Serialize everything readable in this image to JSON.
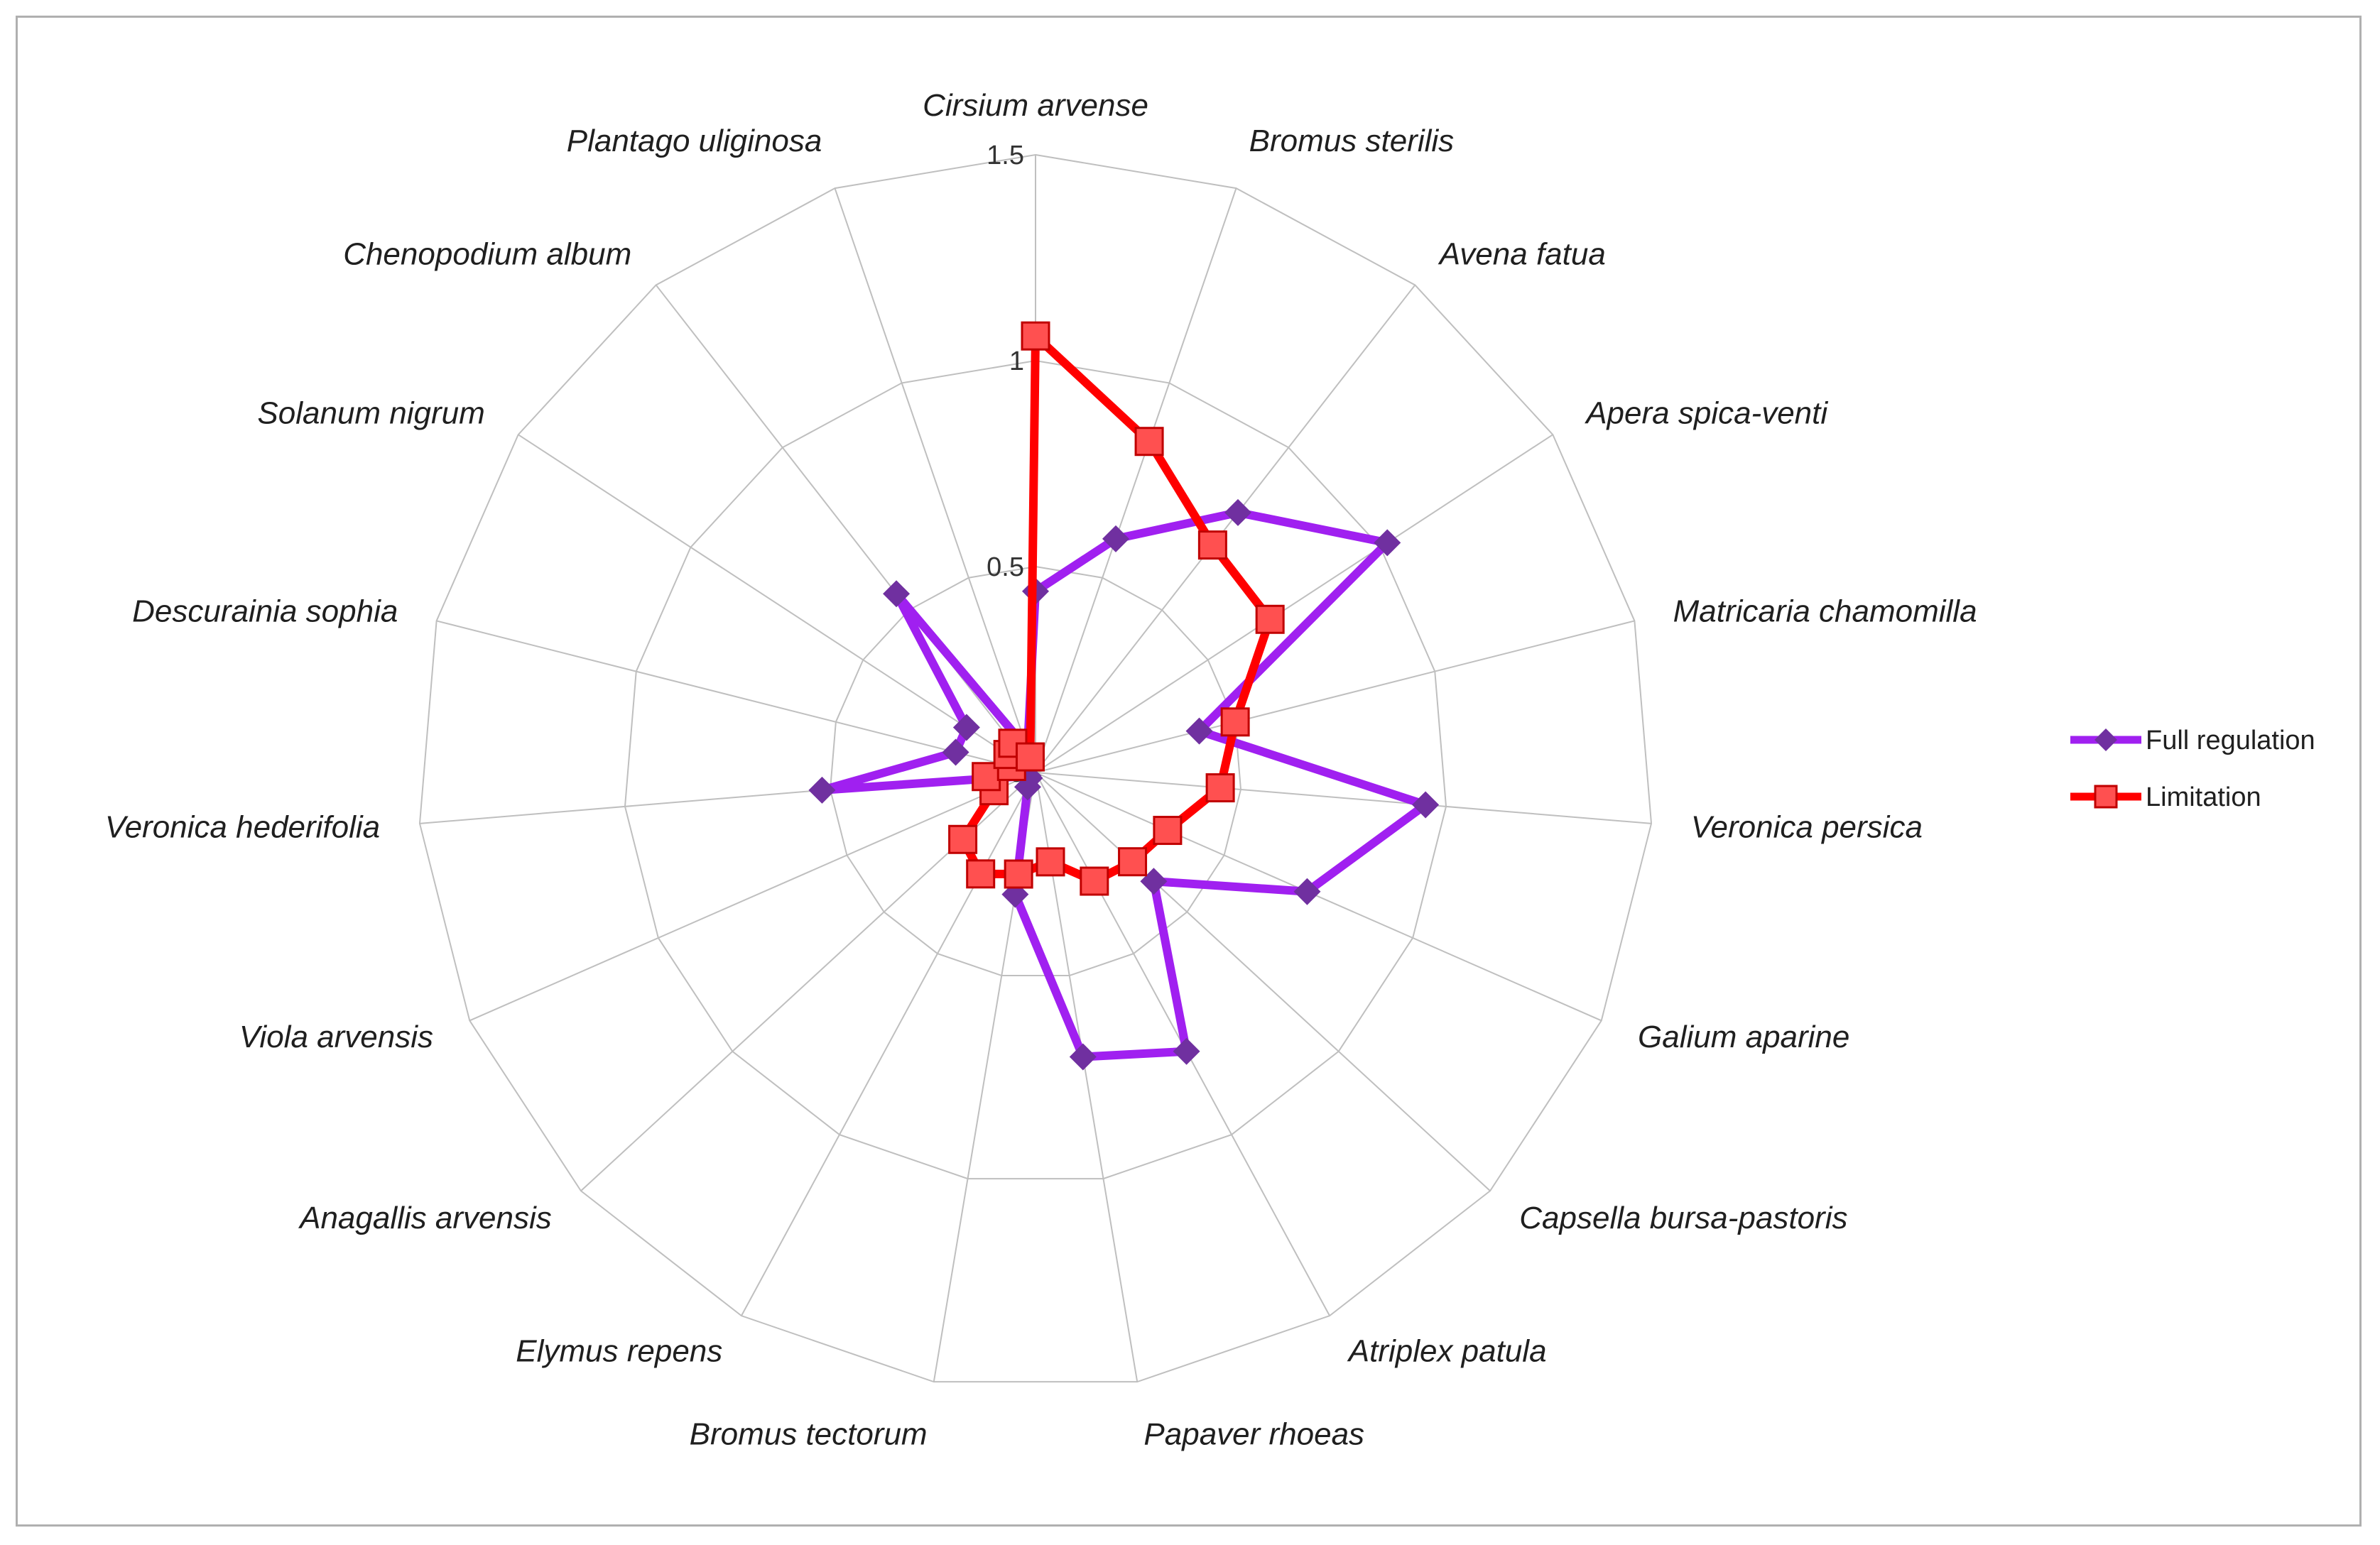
{
  "chart_data": {
    "type": "radar",
    "categories": [
      "Cirsium arvense",
      "Bromus sterilis",
      "Avena fatua",
      "Apera spica-venti",
      "Matricaria chamomilla",
      "Veronica persica",
      "Galium aparine",
      "Capsella bursa-pastoris",
      "Atriplex patula",
      "Papaver rhoeas",
      "Bromus tectorum",
      "Elymus repens",
      "Anagallis arvensis",
      "Viola arvensis",
      "Veronica hederifolia",
      "Descurainia sophia",
      "Solanum nigrum",
      "Chenopodium album",
      "Plantago uliginosa"
    ],
    "axis": {
      "min": 0,
      "max": 1.5,
      "ticks": [
        0,
        0.5,
        1,
        1.5
      ],
      "tick_labels": [
        "0",
        "0.5",
        "1",
        "1.5"
      ]
    },
    "grid": true,
    "legend_position": "right",
    "series": [
      {
        "name": "Full regulation",
        "color": "#a020f0",
        "marker_color": "#7030a0",
        "marker": "diamond",
        "values": [
          0.44,
          0.6,
          0.8,
          1.02,
          0.41,
          0.95,
          0.72,
          0.39,
          0.77,
          0.7,
          0.3,
          0.04,
          0.02,
          0.02,
          0.52,
          0.2,
          0.2,
          0.55,
          0.06
        ]
      },
      {
        "name": "Limitation",
        "color": "#ff0000",
        "marker_color": "#ff5050",
        "marker": "square",
        "values": [
          1.06,
          0.85,
          0.7,
          0.68,
          0.5,
          0.45,
          0.35,
          0.32,
          0.3,
          0.22,
          0.25,
          0.28,
          0.24,
          0.11,
          0.12,
          0.06,
          0.08,
          0.09,
          0.04
        ]
      }
    ]
  }
}
